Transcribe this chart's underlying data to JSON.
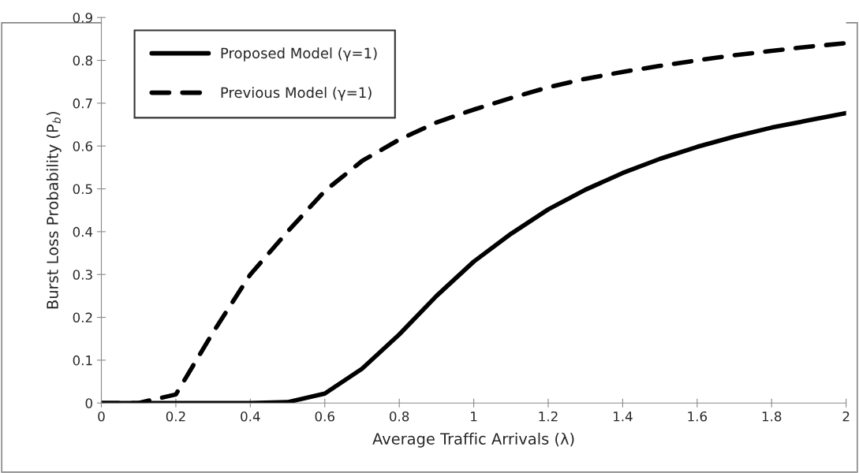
{
  "chart_data": {
    "type": "line",
    "xlabel": "Average Traffic Arrivals (λ)",
    "ylabel": "Burst Loss Probability (P$_{b}$)",
    "x": [
      0,
      0.1,
      0.2,
      0.3,
      0.4,
      0.5,
      0.6,
      0.7,
      0.8,
      0.9,
      1.0,
      1.1,
      1.2,
      1.3,
      1.4,
      1.5,
      1.6,
      1.7,
      1.8,
      1.9,
      2.0
    ],
    "series": [
      {
        "name": "Proposed Model (γ=1)",
        "color": "#000000",
        "line_style": "solid",
        "values": [
          0,
          0,
          0,
          0,
          0,
          0.002,
          0.022,
          0.08,
          0.16,
          0.25,
          0.33,
          0.395,
          0.452,
          0.498,
          0.537,
          0.57,
          0.598,
          0.622,
          0.643,
          0.66,
          0.677
        ]
      },
      {
        "name": "Previous Model (γ=1)",
        "color": "#000000",
        "line_style": "dashed",
        "values": [
          0,
          0,
          0.02,
          0.165,
          0.3,
          0.4,
          0.495,
          0.565,
          0.615,
          0.655,
          0.685,
          0.712,
          0.737,
          0.757,
          0.773,
          0.787,
          0.8,
          0.812,
          0.822,
          0.832,
          0.84
        ]
      }
    ],
    "xlim": [
      0,
      2
    ],
    "xticks": [
      0,
      0.2,
      0.4,
      0.6,
      0.8,
      1,
      1.2,
      1.4,
      1.6,
      1.8,
      2
    ],
    "ylim": [
      0,
      0.9
    ],
    "yticks": [
      0,
      0.1,
      0.2,
      0.3,
      0.4,
      0.5,
      0.6,
      0.7,
      0.8,
      0.9
    ],
    "grid": false,
    "legend": "top left",
    "marker": "none"
  }
}
